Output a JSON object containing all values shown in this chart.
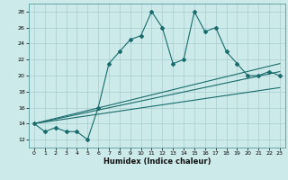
{
  "title": "",
  "xlabel": "Humidex (Indice chaleur)",
  "bg_color": "#cceaea",
  "line_color": "#1a6b6b",
  "grid_color": "#aacccc",
  "xlim": [
    -0.5,
    23.5
  ],
  "ylim": [
    11,
    29
  ],
  "xticks": [
    0,
    1,
    2,
    3,
    4,
    5,
    6,
    7,
    8,
    9,
    10,
    11,
    12,
    13,
    14,
    15,
    16,
    17,
    18,
    19,
    20,
    21,
    22,
    23
  ],
  "yticks": [
    12,
    14,
    16,
    18,
    20,
    22,
    24,
    26,
    28
  ],
  "main_x": [
    0,
    1,
    2,
    3,
    4,
    5,
    6,
    7,
    8,
    9,
    10,
    11,
    12,
    13,
    14,
    15,
    16,
    17,
    18,
    19,
    20,
    21,
    22,
    23
  ],
  "main_y": [
    14,
    13,
    13.5,
    13,
    13,
    12,
    16,
    21.5,
    23,
    24.5,
    25,
    28,
    26,
    21.5,
    22,
    28,
    25.5,
    26,
    23,
    21.5,
    20,
    20,
    20.5,
    20
  ],
  "line1_x": [
    0,
    23
  ],
  "line1_y": [
    14.0,
    18.5
  ],
  "line2_x": [
    0,
    23
  ],
  "line2_y": [
    14.0,
    20.5
  ],
  "line3_x": [
    0,
    23
  ],
  "line3_y": [
    14.0,
    21.5
  ]
}
